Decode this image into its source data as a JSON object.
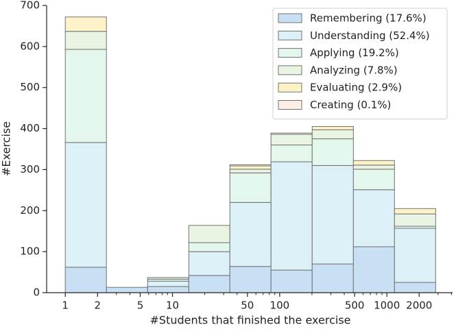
{
  "chart_data": {
    "type": "stacked_histogram",
    "xlabel": "#Students that finished the exercise",
    "ylabel": "#Exercise",
    "xscale": "log",
    "bins": [
      1,
      2.42,
      5.86,
      14.2,
      34.3,
      83,
      201,
      487,
      1178,
      2851
    ],
    "series": [
      {
        "name": "Remembering (17.6%)",
        "color": "#c8dff4",
        "values": [
          62,
          13,
          15,
          42,
          64,
          55,
          70,
          112,
          25
        ]
      },
      {
        "name": "Understanding (52.4%)",
        "color": "#dcf1f7",
        "values": [
          304,
          0,
          13,
          58,
          156,
          264,
          240,
          139,
          132
        ]
      },
      {
        "name": "Applying (19.2%)",
        "color": "#e4f7ec",
        "values": [
          227,
          0,
          5,
          22,
          72,
          41,
          65,
          50,
          5
        ]
      },
      {
        "name": "Analyzing (7.8%)",
        "color": "#e9f4e3",
        "values": [
          44,
          0,
          4,
          42,
          9,
          26,
          22,
          10,
          30
        ]
      },
      {
        "name": "Evaluating (2.9%)",
        "color": "#fdf2c8",
        "values": [
          35,
          0,
          0,
          0,
          8,
          3,
          8,
          11,
          13
        ]
      },
      {
        "name": "Creating (0.1%)",
        "color": "#fbefe5",
        "values": [
          0,
          0,
          0,
          0,
          3,
          0,
          0,
          0,
          0
        ]
      }
    ],
    "xlim": [
      0.67,
      4100
    ],
    "xticks": [
      1,
      2,
      5,
      10,
      50,
      100,
      500,
      1000,
      2000
    ],
    "xminorticks": [
      3,
      4,
      6,
      7,
      8,
      9,
      20,
      30,
      40,
      60,
      70,
      80,
      90,
      200,
      300,
      400,
      600,
      700,
      800,
      900,
      3000,
      4000
    ],
    "ylim": [
      0,
      700
    ],
    "yticks": [
      0,
      100,
      200,
      300,
      400,
      500,
      600,
      700
    ],
    "legend": "upper right",
    "edgecolor": "#707070"
  }
}
